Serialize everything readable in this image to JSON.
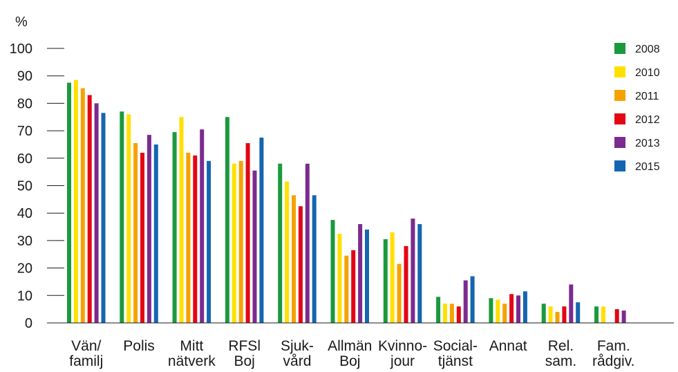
{
  "chart_data": {
    "type": "bar",
    "title": "",
    "xlabel": "",
    "ylabel": "%",
    "ylim": [
      0,
      100
    ],
    "yticks": [
      "0",
      "10",
      "20",
      "30",
      "40",
      "50",
      "60",
      "70",
      "80",
      "90",
      "100"
    ],
    "grid": false,
    "legend_position": "right",
    "categories": [
      [
        "Vän/",
        "familj"
      ],
      [
        "Polis"
      ],
      [
        "Mitt",
        "nätverk"
      ],
      [
        "RFSl",
        "Boj"
      ],
      [
        "Sjuk-",
        "vård"
      ],
      [
        "Allmän",
        "Boj"
      ],
      [
        "Kvinno-",
        "jour"
      ],
      [
        "Social-",
        "tjänst"
      ],
      [
        "Annat"
      ],
      [
        "Rel.",
        "sam."
      ],
      [
        "Fam.",
        "rådgiv."
      ]
    ],
    "series": [
      {
        "name": "2008",
        "color": "#1a9a3c",
        "values": [
          87.5,
          77,
          69.5,
          75,
          58,
          37.5,
          30.5,
          9.5,
          9,
          7,
          6
        ]
      },
      {
        "name": "2010",
        "color": "#ffe000",
        "values": [
          88.5,
          76,
          75,
          58,
          51.5,
          32.5,
          33,
          7,
          8.5,
          6,
          6
        ]
      },
      {
        "name": "2011",
        "color": "#f5a200",
        "values": [
          85.5,
          65.5,
          62,
          59,
          46.5,
          24.5,
          21.5,
          7,
          7,
          4,
          null
        ]
      },
      {
        "name": "2012",
        "color": "#e30613",
        "values": [
          83,
          62,
          61,
          65.5,
          42.5,
          26.5,
          28,
          6,
          10.5,
          6,
          5
        ]
      },
      {
        "name": "2013",
        "color": "#7b2b8f",
        "values": [
          80,
          68.5,
          70.5,
          55.5,
          58,
          36,
          38,
          15.5,
          10,
          14,
          4.5
        ]
      },
      {
        "name": "2015",
        "color": "#1466b0",
        "values": [
          76.5,
          65,
          59,
          67.5,
          46.5,
          34,
          36,
          17,
          11.5,
          7.5,
          null
        ]
      }
    ]
  }
}
